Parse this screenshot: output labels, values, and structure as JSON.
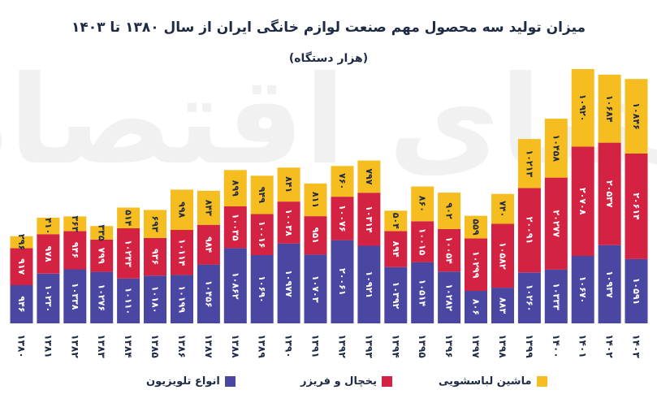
{
  "chart_data": {
    "type": "bar",
    "stacked": true,
    "title": "میزان تولید سه محصول مهم صنعت لوازم خانگی ایران از سال ۱۳۸۰ تا ۱۴۰۳",
    "subtitle": "(هزار دستگاه)",
    "watermark": "دنیای اقتصاد",
    "categories": [
      "۱۳۸۰",
      "۱۳۸۱",
      "۱۳۸۲",
      "۱۳۸۳",
      "۱۳۸۴",
      "۱۳۸۵",
      "۱۳۸۶",
      "۱۳۸۷",
      "۱۳۸۸",
      "۱۳۸۹",
      "۱۳۹۰",
      "۱۳۹۱",
      "۱۳۹۲",
      "۱۳۹۳",
      "۱۳۹۴",
      "۱۳۹۵",
      "۱۳۹۶",
      "۱۳۹۷",
      "۱۳۹۸",
      "۱۳۹۹",
      "۱۴۰۰",
      "۱۴۰۱",
      "۱۴۰۲",
      "۱۴۰۳"
    ],
    "series": [
      {
        "name": "انواع تلویزیون",
        "color": "#4a47a3",
        "values": [
          946,
          1230,
          1338,
          1276,
          1110,
          1180,
          1199,
          1456,
          1862,
          1690,
          1977,
          1703,
          2061,
          1921,
          1392,
          1514,
          1282,
          806,
          883,
          1260,
          1333,
          1670,
          1937,
          1591
        ],
        "labels": [
          "۹۴۶",
          "۱۰۲۳۰",
          "۱۰۳۳۸",
          "۱۰۲۷۶",
          "۱۰۱۱۰",
          "۱۰۱۸۰",
          "۱۰۱۹۹",
          "۱۰۴۵۶",
          "۱۰۸۶۲",
          "۱۰۶۹۰",
          "۱۰۹۷۷",
          "۱۰۷۰۳",
          "۲۰۰۶۱",
          "۱۰۹۲۱",
          "۱۰۳۹۲",
          "۱۰۵۱۴",
          "۱۰۲۸۲",
          "۸۰۶",
          "۸۸۳",
          "۱۰۲۶۰",
          "۱۰۳۳۳",
          "۱۰۶۷۰",
          "۱۰۹۳۷",
          "۱۰۵۹۱"
        ]
      },
      {
        "name": "یخچال و فریزر",
        "color": "#d32242",
        "values": [
          917,
          978,
          946,
          799,
          1243,
          936,
          1114,
          984,
          1035,
          1016,
          1038,
          951,
          1076,
          1314,
          894,
          1015,
          1054,
          1299,
          1582,
          2091,
          2277,
          2708,
          2537,
          2614
        ],
        "labels": [
          "۹۱۷",
          "۹۷۸",
          "۹۴۶",
          "۷۹۹",
          "۱۰۲۴۳",
          "۹۳۶",
          "۱۰۱۱۴",
          "۹۸۴",
          "۱۰۰۳۵",
          "۱۰۰۱۶",
          "۱۰۰۳۸",
          "۹۵۱",
          "۱۰۰۷۶",
          "۱۰۳۱۴",
          "۸۹۴",
          "۱۰۰۱۵",
          "۱۰۰۵۴",
          "۱۰۲۹۹",
          "۱۰۵۸۲",
          "۲۰۰۹۱",
          "۲۰۲۷۷",
          "۲۰۷۰۸",
          "۲۰۵۳۷",
          "۲۰۶۱۴"
        ]
      },
      {
        "name": "ماشین لباسشویی",
        "color": "#f5bd1f",
        "values": [
          296,
          410,
          363,
          335,
          514,
          693,
          998,
          843,
          899,
          949,
          841,
          811,
          760,
          797,
          504,
          860,
          902,
          559,
          740,
          1213,
          1458,
          1920,
          1684,
          1846
        ],
        "labels": [
          "۲۹۶",
          "۴۱۰",
          "۳۶۳",
          "۳۳۵",
          "۵۱۴",
          "۶۹۳",
          "۹۹۸",
          "۸۴۳",
          "۸۹۹",
          "۹۴۹",
          "۸۴۱",
          "۸۱۱",
          "۷۶۰",
          "۷۹۷",
          "۵۰۴",
          "۸۶۰",
          "۹۰۲",
          "۵۵۹",
          "۷۴۰",
          "۱۰۲۱۳",
          "۱۰۴۵۸",
          "۱۰۹۲۰",
          "۱۰۶۸۴",
          "۱۰۸۴۶"
        ]
      }
    ],
    "ylim": [
      0,
      6800
    ],
    "grid": false,
    "legend": "bottom"
  }
}
